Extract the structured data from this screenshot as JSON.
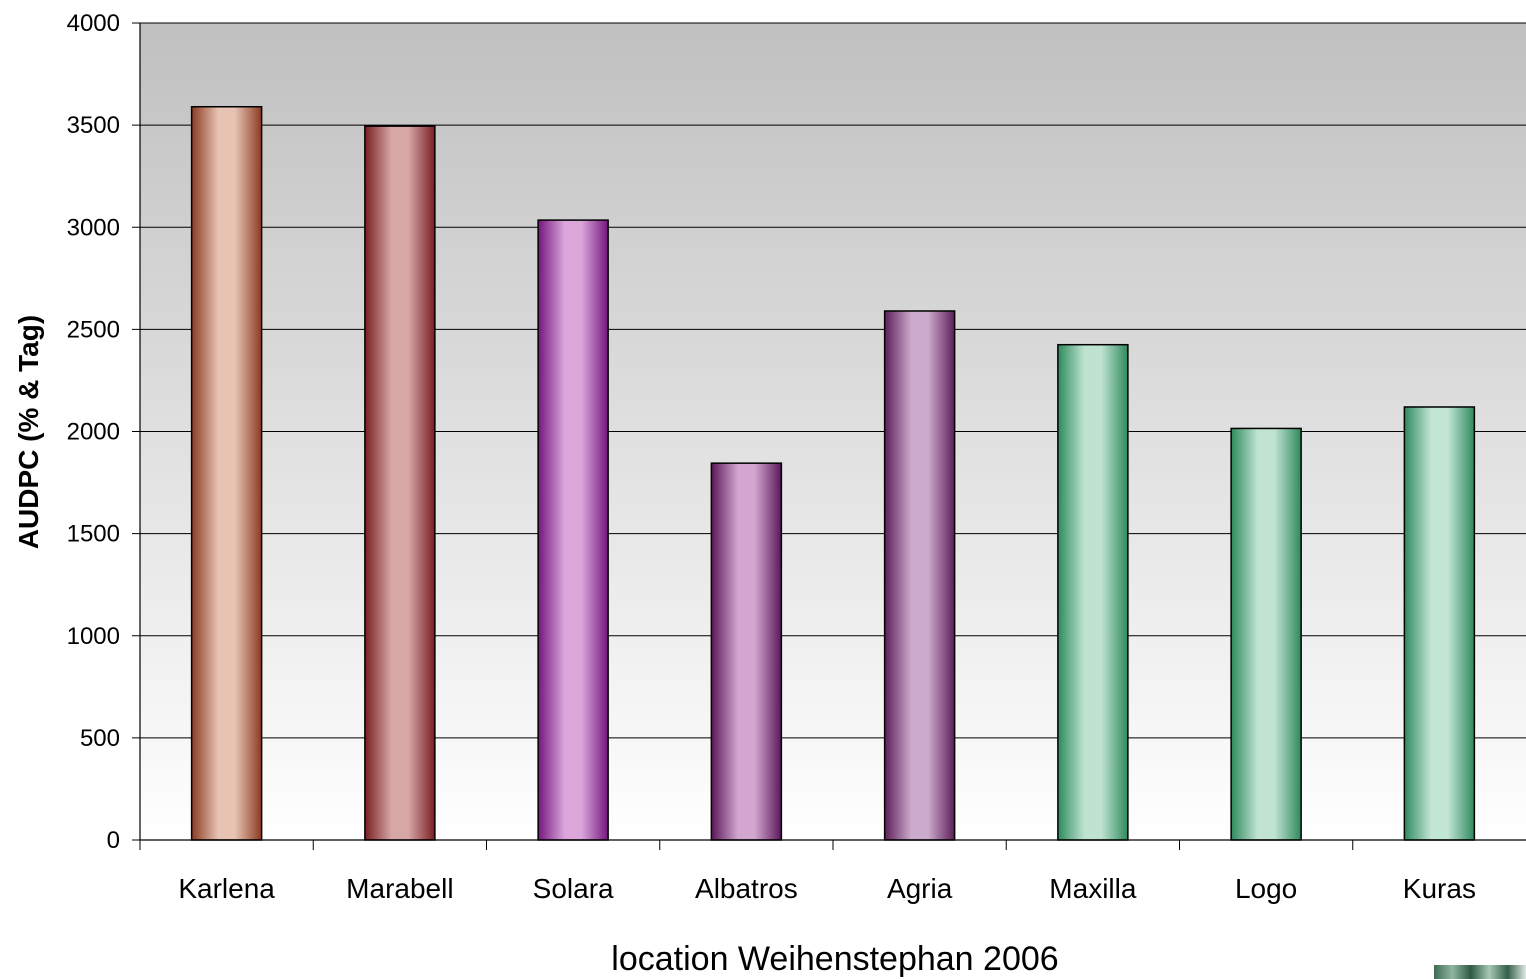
{
  "chart_data": {
    "type": "bar",
    "categories": [
      "Karlena",
      "Marabell",
      "Solara",
      "Albatros",
      "Agria",
      "Maxilla",
      "Logo",
      "Kuras"
    ],
    "values": [
      3590,
      3495,
      3035,
      1845,
      2590,
      2425,
      2015,
      2120
    ],
    "ylabel": "AUDPC (% & Tag)",
    "xlabel": "location Weihenstephan 2006",
    "ylim": [
      0,
      4000
    ],
    "yticks": [
      0,
      500,
      1000,
      1500,
      2000,
      2500,
      3000,
      3500,
      4000
    ],
    "grid": true,
    "bar_colors": {
      "Karlena": {
        "edge": "#8c3a22",
        "light": "#e6c3b2"
      },
      "Marabell": {
        "edge": "#7a1e22",
        "light": "#d6a7a6"
      },
      "Solara": {
        "edge": "#74167e",
        "light": "#dba6da"
      },
      "Albatros": {
        "edge": "#5a1758",
        "light": "#d2a6d0"
      },
      "Agria": {
        "edge": "#5c1f59",
        "light": "#ccaacd"
      },
      "Maxilla": {
        "edge": "#2e8a5d",
        "light": "#bfe3d1"
      },
      "Logo": {
        "edge": "#2e8a5d",
        "light": "#c0e3d2"
      },
      "Kuras": {
        "edge": "#2e8a5d",
        "light": "#c2e5d4"
      }
    },
    "background_gradient": [
      "#c0c0c0",
      "#ffffff"
    ]
  }
}
